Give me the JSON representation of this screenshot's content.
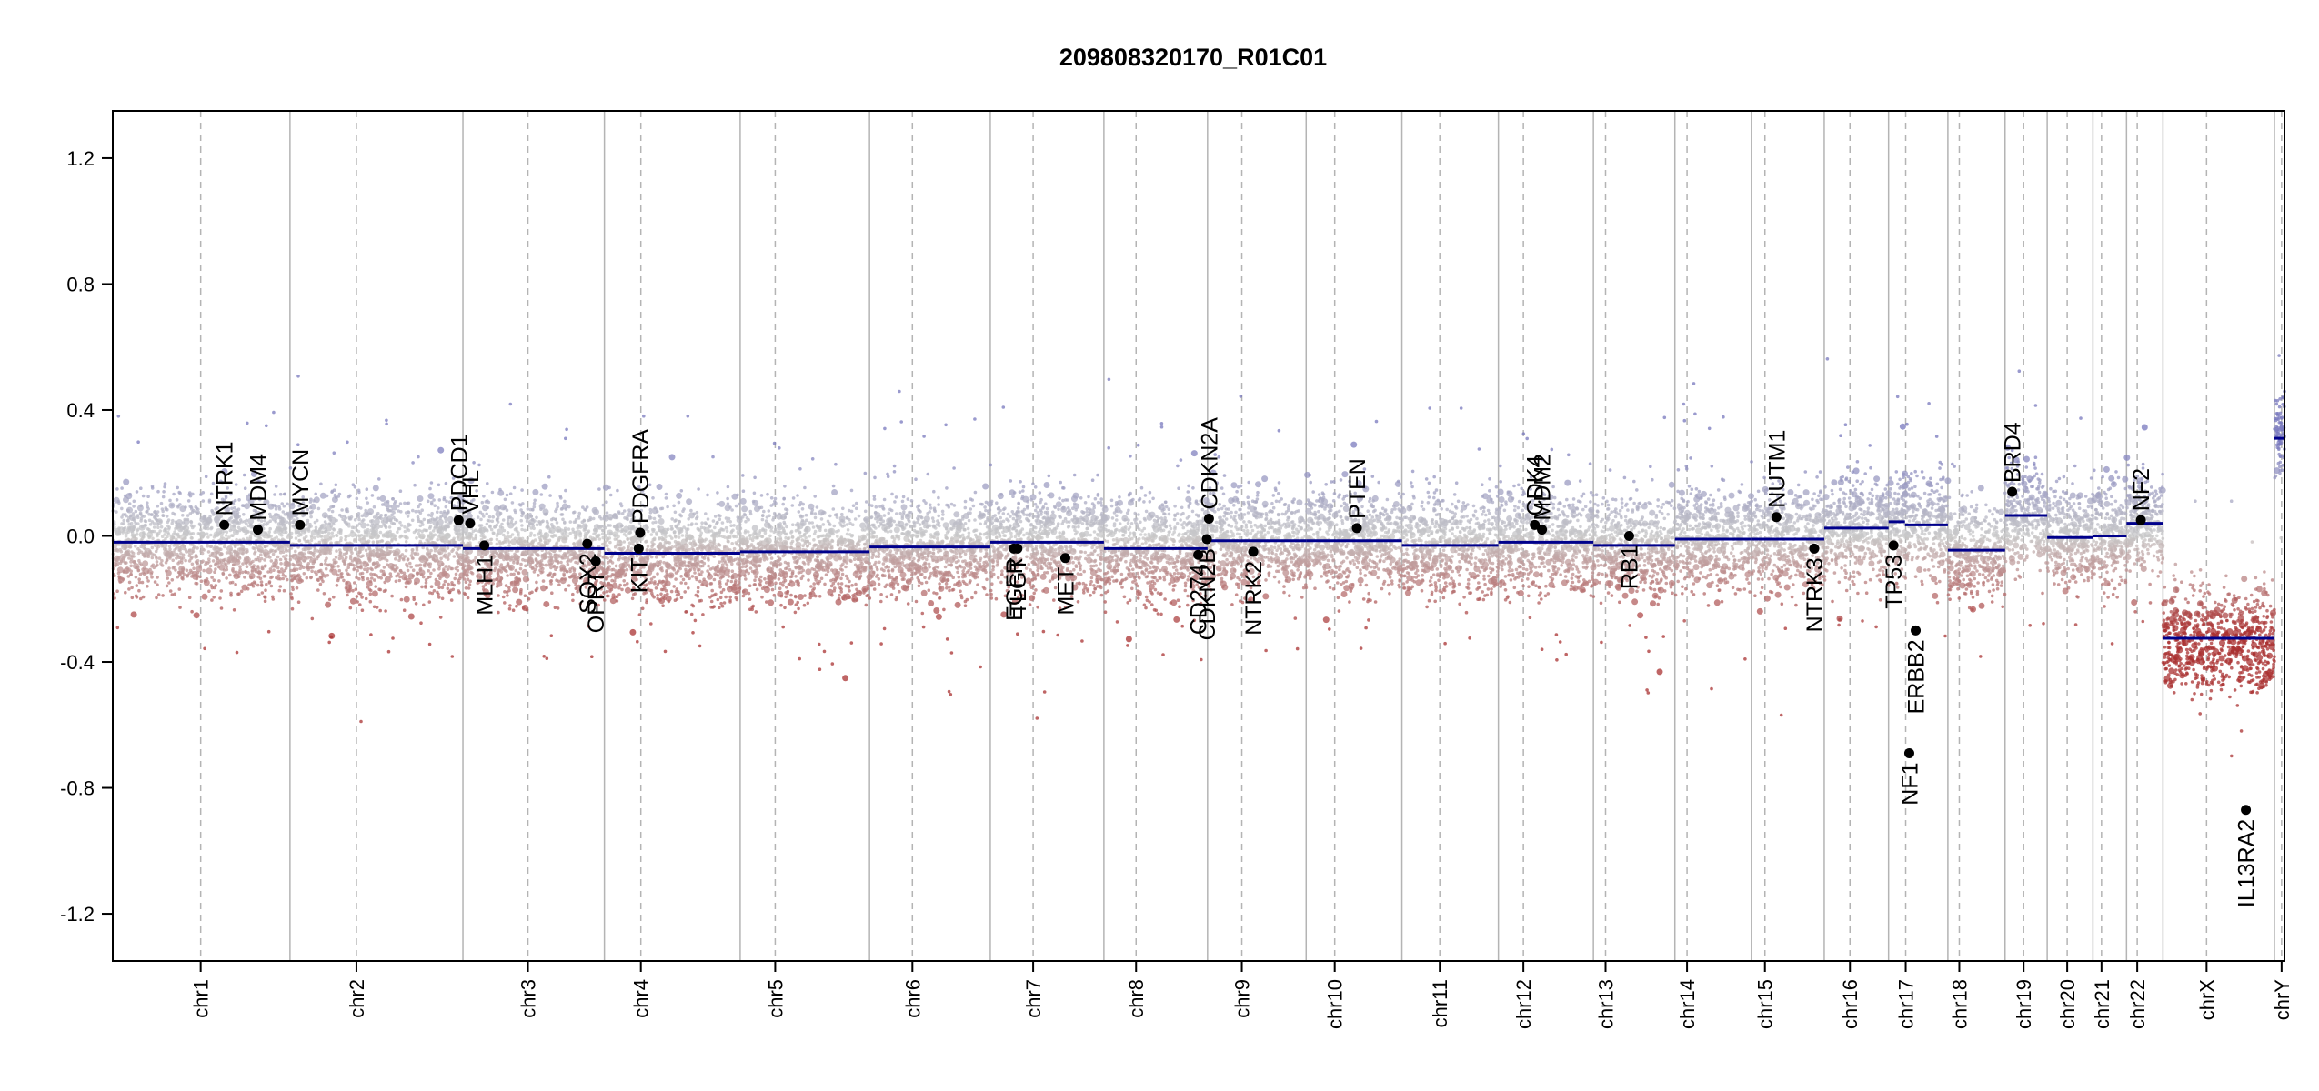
{
  "chart_data": {
    "type": "scatter",
    "title": "209808320170_R01C01",
    "xlabel": "",
    "ylabel": "",
    "ylim": [
      -1.35,
      1.35
    ],
    "y_ticks": [
      {
        "value": -1.2,
        "label": "-1.2"
      },
      {
        "value": -0.8,
        "label": "-0.8"
      },
      {
        "value": -0.4,
        "label": "-0.4"
      },
      {
        "value": 0.0,
        "label": "0.0"
      },
      {
        "value": 0.4,
        "label": "0.4"
      },
      {
        "value": 0.8,
        "label": "0.8"
      },
      {
        "value": 1.2,
        "label": "1.2"
      }
    ],
    "genome_range": [
      0,
      3039
    ],
    "grid": false,
    "legend": "none",
    "colors": {
      "gain": "#8080c0",
      "neutral": "#c8c8c8",
      "loss": "#b04040",
      "segment": "#00008b",
      "gene": "#000000",
      "boundary": "#b4b4b4",
      "centromere": "#b4b4b4"
    },
    "chromosomes": [
      {
        "name": "chr1",
        "start": 0,
        "end": 248,
        "centromere": 123
      },
      {
        "name": "chr2",
        "start": 248,
        "end": 490,
        "centromere": 341
      },
      {
        "name": "chr3",
        "start": 490,
        "end": 688,
        "centromere": 581
      },
      {
        "name": "chr4",
        "start": 688,
        "end": 878,
        "centromere": 739
      },
      {
        "name": "chr5",
        "start": 878,
        "end": 1059,
        "centromere": 927
      },
      {
        "name": "chr6",
        "start": 1059,
        "end": 1228,
        "centromere": 1119
      },
      {
        "name": "chr7",
        "start": 1228,
        "end": 1387,
        "centromere": 1288
      },
      {
        "name": "chr8",
        "start": 1387,
        "end": 1532,
        "centromere": 1432
      },
      {
        "name": "chr9",
        "start": 1532,
        "end": 1670,
        "centromere": 1580
      },
      {
        "name": "chr10",
        "start": 1670,
        "end": 1804,
        "centromere": 1710
      },
      {
        "name": "chr11",
        "start": 1804,
        "end": 1939,
        "centromere": 1857
      },
      {
        "name": "chr12",
        "start": 1939,
        "end": 2072,
        "centromere": 1974
      },
      {
        "name": "chr13",
        "start": 2072,
        "end": 2186,
        "centromere": 2089
      },
      {
        "name": "chr14",
        "start": 2186,
        "end": 2293,
        "centromere": 2203
      },
      {
        "name": "chr15",
        "start": 2293,
        "end": 2395,
        "centromere": 2312
      },
      {
        "name": "chr16",
        "start": 2395,
        "end": 2485,
        "centromere": 2431
      },
      {
        "name": "chr17",
        "start": 2485,
        "end": 2568,
        "centromere": 2509
      },
      {
        "name": "chr18",
        "start": 2568,
        "end": 2648,
        "centromere": 2584
      },
      {
        "name": "chr19",
        "start": 2648,
        "end": 2707,
        "centromere": 2674
      },
      {
        "name": "chr20",
        "start": 2707,
        "end": 2771,
        "centromere": 2735
      },
      {
        "name": "chr21",
        "start": 2771,
        "end": 2818,
        "centromere": 2783
      },
      {
        "name": "chr22",
        "start": 2818,
        "end": 2869,
        "centromere": 2833
      },
      {
        "name": "chrX",
        "start": 2869,
        "end": 3025,
        "centromere": 2930
      },
      {
        "name": "chrY",
        "start": 3025,
        "end": 3039,
        "centromere": 3035
      }
    ],
    "segments": [
      {
        "start": 0,
        "end": 248,
        "value": -0.02
      },
      {
        "start": 248,
        "end": 490,
        "value": -0.03
      },
      {
        "start": 490,
        "end": 688,
        "value": -0.04
      },
      {
        "start": 688,
        "end": 878,
        "value": -0.055
      },
      {
        "start": 878,
        "end": 1059,
        "value": -0.05
      },
      {
        "start": 1059,
        "end": 1228,
        "value": -0.035
      },
      {
        "start": 1228,
        "end": 1387,
        "value": -0.02
      },
      {
        "start": 1387,
        "end": 1532,
        "value": -0.04
      },
      {
        "start": 1532,
        "end": 1670,
        "value": -0.015
      },
      {
        "start": 1670,
        "end": 1804,
        "value": -0.015
      },
      {
        "start": 1804,
        "end": 1939,
        "value": -0.03
      },
      {
        "start": 1939,
        "end": 2072,
        "value": -0.02
      },
      {
        "start": 2072,
        "end": 2186,
        "value": -0.03
      },
      {
        "start": 2186,
        "end": 2293,
        "value": -0.01
      },
      {
        "start": 2293,
        "end": 2395,
        "value": -0.01
      },
      {
        "start": 2395,
        "end": 2485,
        "value": 0.025
      },
      {
        "start": 2485,
        "end": 2508,
        "value": 0.045
      },
      {
        "start": 2508,
        "end": 2568,
        "value": 0.035
      },
      {
        "start": 2568,
        "end": 2648,
        "value": -0.045
      },
      {
        "start": 2648,
        "end": 2707,
        "value": 0.065
      },
      {
        "start": 2707,
        "end": 2771,
        "value": -0.005
      },
      {
        "start": 2771,
        "end": 2818,
        "value": 0.0
      },
      {
        "start": 2818,
        "end": 2869,
        "value": 0.04
      },
      {
        "start": 2869,
        "end": 3025,
        "value": -0.325
      },
      {
        "start": 3025,
        "end": 3039,
        "value": 0.31
      }
    ],
    "genes": [
      {
        "name": "NTRK1",
        "x": 156,
        "y": 0.035,
        "side": "above"
      },
      {
        "name": "MDM4",
        "x": 203,
        "y": 0.02,
        "side": "above"
      },
      {
        "name": "MYCN",
        "x": 262,
        "y": 0.035,
        "side": "above"
      },
      {
        "name": "PDCD1",
        "x": 484,
        "y": 0.05,
        "side": "above"
      },
      {
        "name": "VHL",
        "x": 500,
        "y": 0.04,
        "side": "above"
      },
      {
        "name": "MLH1",
        "x": 520,
        "y": -0.03,
        "side": "below"
      },
      {
        "name": "SOX2",
        "x": 664,
        "y": -0.025,
        "side": "below"
      },
      {
        "name": "OPRT",
        "x": 676,
        "y": -0.08,
        "side": "below"
      },
      {
        "name": "KIT",
        "x": 736,
        "y": -0.04,
        "side": "below"
      },
      {
        "name": "PDGFRA",
        "x": 738,
        "y": 0.01,
        "side": "above"
      },
      {
        "name": "EGFR",
        "x": 1261,
        "y": -0.04,
        "side": "below"
      },
      {
        "name": "TLGT",
        "x": 1266,
        "y": -0.04,
        "side": "below"
      },
      {
        "name": "MET",
        "x": 1333,
        "y": -0.07,
        "side": "below"
      },
      {
        "name": "CD274",
        "x": 1519,
        "y": -0.06,
        "side": "below"
      },
      {
        "name": "CDKN2B",
        "x": 1531,
        "y": -0.01,
        "side": "below"
      },
      {
        "name": "CDKN2A",
        "x": 1534,
        "y": 0.055,
        "side": "above"
      },
      {
        "name": "NTRK2",
        "x": 1596,
        "y": -0.05,
        "side": "below"
      },
      {
        "name": "PTEN",
        "x": 1741,
        "y": 0.025,
        "side": "above"
      },
      {
        "name": "CDK4",
        "x": 1990,
        "y": 0.035,
        "side": "above"
      },
      {
        "name": "MDM2",
        "x": 2000,
        "y": 0.02,
        "side": "above"
      },
      {
        "name": "RB1",
        "x": 2122,
        "y": 0.0,
        "side": "below"
      },
      {
        "name": "NUTM1",
        "x": 2328,
        "y": 0.06,
        "side": "above"
      },
      {
        "name": "NTRK3",
        "x": 2381,
        "y": -0.04,
        "side": "below"
      },
      {
        "name": "TP53",
        "x": 2492,
        "y": -0.03,
        "side": "below"
      },
      {
        "name": "NF1",
        "x": 2514,
        "y": -0.69,
        "side": "below"
      },
      {
        "name": "ERBB2",
        "x": 2523,
        "y": -0.3,
        "side": "below"
      },
      {
        "name": "BRD4",
        "x": 2658,
        "y": 0.14,
        "side": "above"
      },
      {
        "name": "NF2",
        "x": 2838,
        "y": 0.05,
        "side": "above"
      },
      {
        "name": "IL13RA2",
        "x": 2985,
        "y": -0.87,
        "side": "below"
      }
    ]
  }
}
